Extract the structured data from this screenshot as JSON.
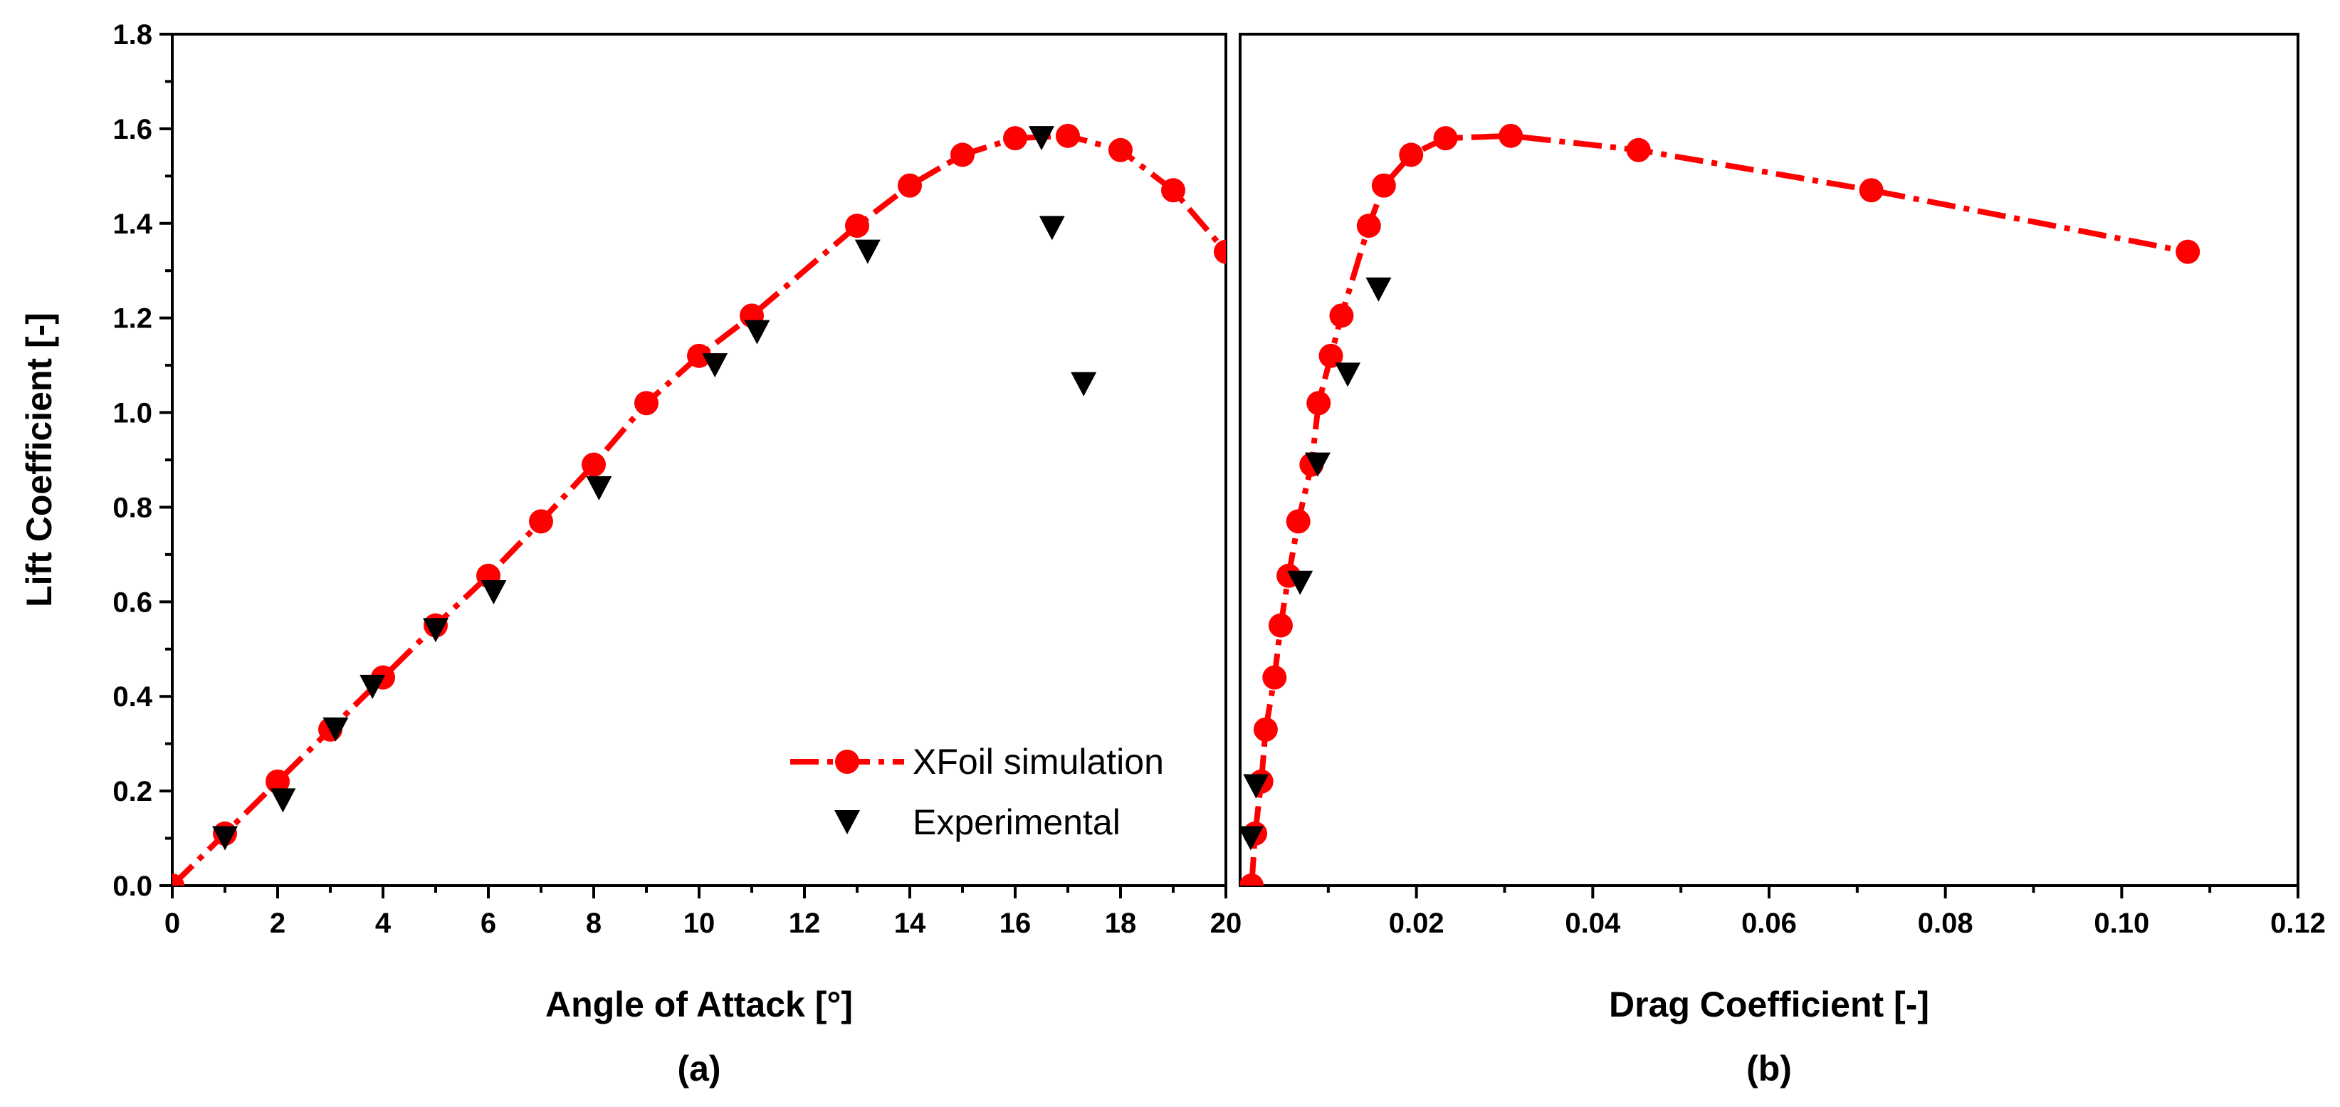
{
  "chart_data": [
    {
      "type": "scatter",
      "panel_label": "(a)",
      "xlabel": "Angle of Attack [°]",
      "ylabel": "Lift Coefficient [-]",
      "xlim": [
        0,
        20
      ],
      "ylim": [
        0,
        1.8
      ],
      "xticks": [
        0,
        2,
        4,
        6,
        8,
        10,
        12,
        14,
        16,
        18,
        20
      ],
      "yticks": [
        0.0,
        0.2,
        0.4,
        0.6,
        0.8,
        1.0,
        1.2,
        1.4,
        1.6,
        1.8
      ],
      "grid": false,
      "legend_position": "bottom-right",
      "series": [
        {
          "name": "XFoil simulation",
          "marker": "circle",
          "line": "dash-dot",
          "color": "#ff0000",
          "x": [
            0,
            1,
            2,
            3,
            4,
            5,
            6,
            7,
            8,
            9,
            10,
            11,
            13,
            14,
            15,
            16,
            17,
            18,
            19,
            20
          ],
          "y": [
            0.0,
            0.11,
            0.22,
            0.33,
            0.44,
            0.55,
            0.655,
            0.77,
            0.89,
            1.02,
            1.12,
            1.205,
            1.395,
            1.48,
            1.545,
            1.58,
            1.585,
            1.555,
            1.47,
            1.34
          ]
        },
        {
          "name": "Experimental",
          "marker": "triangle-down",
          "line": "none",
          "color": "#000000",
          "x": [
            1.0,
            2.1,
            3.1,
            3.8,
            5.0,
            6.1,
            8.1,
            10.3,
            11.1,
            13.2,
            16.5,
            16.7,
            17.3
          ],
          "y": [
            0.1,
            0.18,
            0.33,
            0.42,
            0.54,
            0.62,
            0.84,
            1.1,
            1.17,
            1.34,
            1.58,
            1.39,
            1.06
          ]
        }
      ]
    },
    {
      "type": "scatter",
      "panel_label": "(b)",
      "xlabel": "Drag Coefficient [-]",
      "ylabel": "",
      "xlim": [
        0,
        0.12
      ],
      "ylim": [
        0,
        1.8
      ],
      "xticks": [
        0.02,
        0.04,
        0.06,
        0.08,
        0.1,
        0.12
      ],
      "xtick_labels": [
        "0.02",
        "0.04",
        "0.06",
        "0.08",
        "0.10",
        "0.12"
      ],
      "grid": false,
      "series": [
        {
          "name": "XFoil simulation",
          "marker": "circle",
          "line": "dash-dot",
          "color": "#ff0000",
          "x": [
            0.0013,
            0.0017,
            0.0024,
            0.0029,
            0.0039,
            0.0046,
            0.0055,
            0.0066,
            0.0081,
            0.0089,
            0.0103,
            0.0115,
            0.0146,
            0.0163,
            0.0194,
            0.0233,
            0.0307,
            0.0452,
            0.0716,
            0.1075
          ],
          "y": [
            0.0,
            0.11,
            0.22,
            0.33,
            0.44,
            0.55,
            0.655,
            0.77,
            0.89,
            1.02,
            1.12,
            1.205,
            1.395,
            1.48,
            1.545,
            1.58,
            1.585,
            1.555,
            1.47,
            1.34
          ]
        },
        {
          "name": "Experimental",
          "marker": "triangle-down",
          "line": "none",
          "color": "#000000",
          "x": [
            0.0012,
            0.0018,
            0.0068,
            0.0088,
            0.0122,
            0.0157
          ],
          "y": [
            0.1,
            0.21,
            0.64,
            0.89,
            1.08,
            1.26
          ]
        }
      ]
    }
  ]
}
